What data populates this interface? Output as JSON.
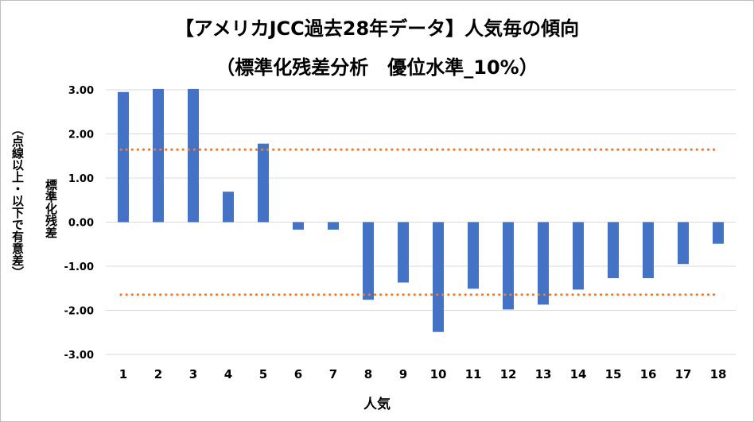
{
  "chart_data": {
    "type": "bar",
    "title": "【アメリカJCC過去28年データ】人気毎の傾向",
    "subtitle": "（標準化残差分析　優位水準_10%）",
    "xlabel": "人気",
    "ylabel": "標準化残差",
    "ylabel_note": "（点線以上・以下で有意差）",
    "categories": [
      "1",
      "2",
      "3",
      "4",
      "5",
      "6",
      "7",
      "8",
      "9",
      "10",
      "11",
      "12",
      "13",
      "14",
      "15",
      "16",
      "17",
      "18"
    ],
    "values": [
      2.95,
      3.02,
      3.02,
      0.69,
      1.78,
      -0.17,
      -0.17,
      -1.76,
      -1.37,
      -2.49,
      -1.51,
      -1.98,
      -1.87,
      -1.53,
      -1.27,
      -1.27,
      -0.95,
      -0.49
    ],
    "ylim": [
      -3.0,
      3.0
    ],
    "yticks": [
      3.0,
      2.0,
      1.0,
      0.0,
      -1.0,
      -2.0,
      -3.0
    ],
    "ytick_labels": [
      "3.00",
      "2.00",
      "1.00",
      "0.00",
      "-1.00",
      "-2.00",
      "-3.00"
    ],
    "threshold_lines": [
      1.645,
      -1.645
    ],
    "grid": true,
    "bar_color": "#4472c4",
    "threshold_color": "#ed7d31",
    "grid_color": "#d9d9d9"
  }
}
